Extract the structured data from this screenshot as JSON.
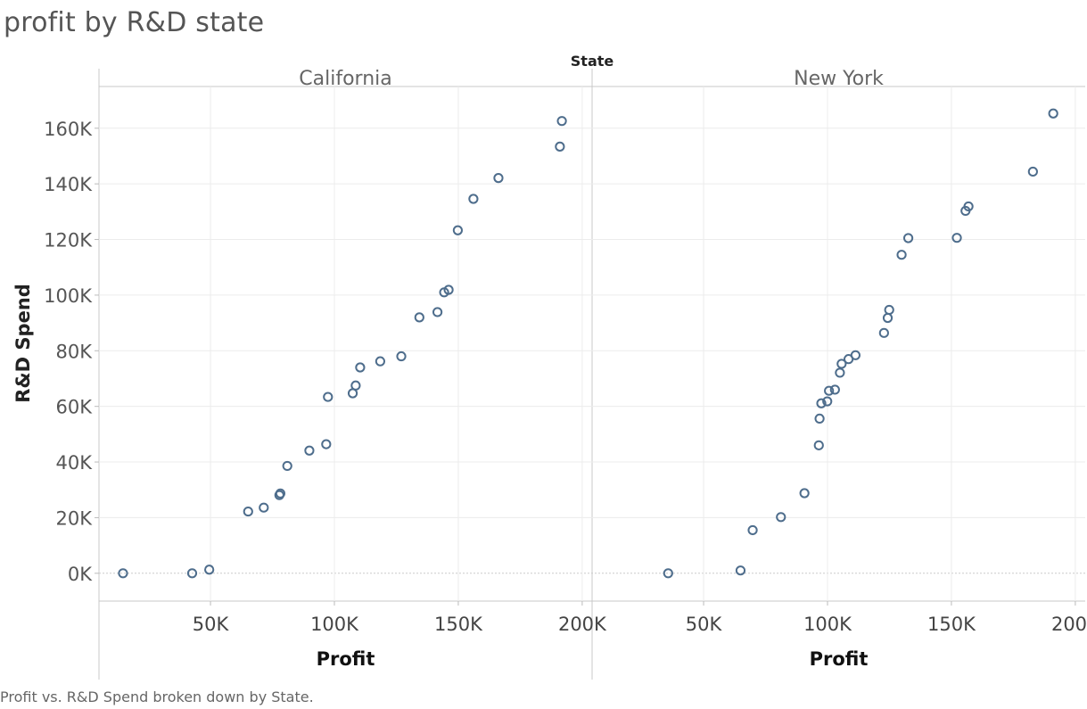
{
  "title": "profit by R&D state",
  "caption": "Profit vs. R&D Spend broken down by State.",
  "chart_data": {
    "type": "scatter",
    "facet_label": "State",
    "xlabel": "Profit",
    "ylabel": "R&D Spend",
    "x_ticks": [
      "50K",
      "100K",
      "150K",
      "200K"
    ],
    "x_tick_values": [
      50000,
      100000,
      150000,
      200000
    ],
    "y_ticks": [
      "0K",
      "20K",
      "40K",
      "60K",
      "80K",
      "100K",
      "120K",
      "140K",
      "160K"
    ],
    "y_tick_values": [
      0,
      20000,
      40000,
      60000,
      80000,
      100000,
      120000,
      140000,
      160000
    ],
    "xlim": [
      5000,
      204000
    ],
    "ylim": [
      -10000,
      175000
    ],
    "grid": true,
    "marker_color": "#4e6d8c",
    "panels": [
      {
        "name": "California",
        "points": [
          {
            "x": 14700,
            "y": 0
          },
          {
            "x": 42600,
            "y": 0
          },
          {
            "x": 49500,
            "y": 1300
          },
          {
            "x": 65200,
            "y": 22200
          },
          {
            "x": 71500,
            "y": 23600
          },
          {
            "x": 77800,
            "y": 28100
          },
          {
            "x": 78200,
            "y": 28700
          },
          {
            "x": 81000,
            "y": 38600
          },
          {
            "x": 89900,
            "y": 44100
          },
          {
            "x": 96700,
            "y": 46400
          },
          {
            "x": 97400,
            "y": 63400
          },
          {
            "x": 107400,
            "y": 64700
          },
          {
            "x": 108600,
            "y": 67500
          },
          {
            "x": 110400,
            "y": 74000
          },
          {
            "x": 118500,
            "y": 76200
          },
          {
            "x": 127000,
            "y": 78000
          },
          {
            "x": 134300,
            "y": 92000
          },
          {
            "x": 141600,
            "y": 93900
          },
          {
            "x": 144300,
            "y": 101000
          },
          {
            "x": 146100,
            "y": 101900
          },
          {
            "x": 149800,
            "y": 123300
          },
          {
            "x": 156100,
            "y": 134600
          },
          {
            "x": 166200,
            "y": 142100
          },
          {
            "x": 191000,
            "y": 153400
          },
          {
            "x": 191800,
            "y": 162600
          }
        ]
      },
      {
        "name": "New York",
        "points": [
          {
            "x": 35700,
            "y": 0
          },
          {
            "x": 64900,
            "y": 1000
          },
          {
            "x": 69800,
            "y": 15500
          },
          {
            "x": 81200,
            "y": 20200
          },
          {
            "x": 90700,
            "y": 28800
          },
          {
            "x": 96500,
            "y": 46000
          },
          {
            "x": 96800,
            "y": 55600
          },
          {
            "x": 97500,
            "y": 61100
          },
          {
            "x": 99900,
            "y": 61800
          },
          {
            "x": 100600,
            "y": 65600
          },
          {
            "x": 103000,
            "y": 66000
          },
          {
            "x": 105000,
            "y": 72100
          },
          {
            "x": 105700,
            "y": 75300
          },
          {
            "x": 108500,
            "y": 77000
          },
          {
            "x": 111300,
            "y": 78400
          },
          {
            "x": 122800,
            "y": 86400
          },
          {
            "x": 124300,
            "y": 91800
          },
          {
            "x": 124900,
            "y": 94700
          },
          {
            "x": 129900,
            "y": 114500
          },
          {
            "x": 132600,
            "y": 120500
          },
          {
            "x": 152200,
            "y": 120600
          },
          {
            "x": 155700,
            "y": 130300
          },
          {
            "x": 156900,
            "y": 131900
          },
          {
            "x": 182900,
            "y": 144400
          },
          {
            "x": 191100,
            "y": 165300
          }
        ]
      }
    ]
  }
}
